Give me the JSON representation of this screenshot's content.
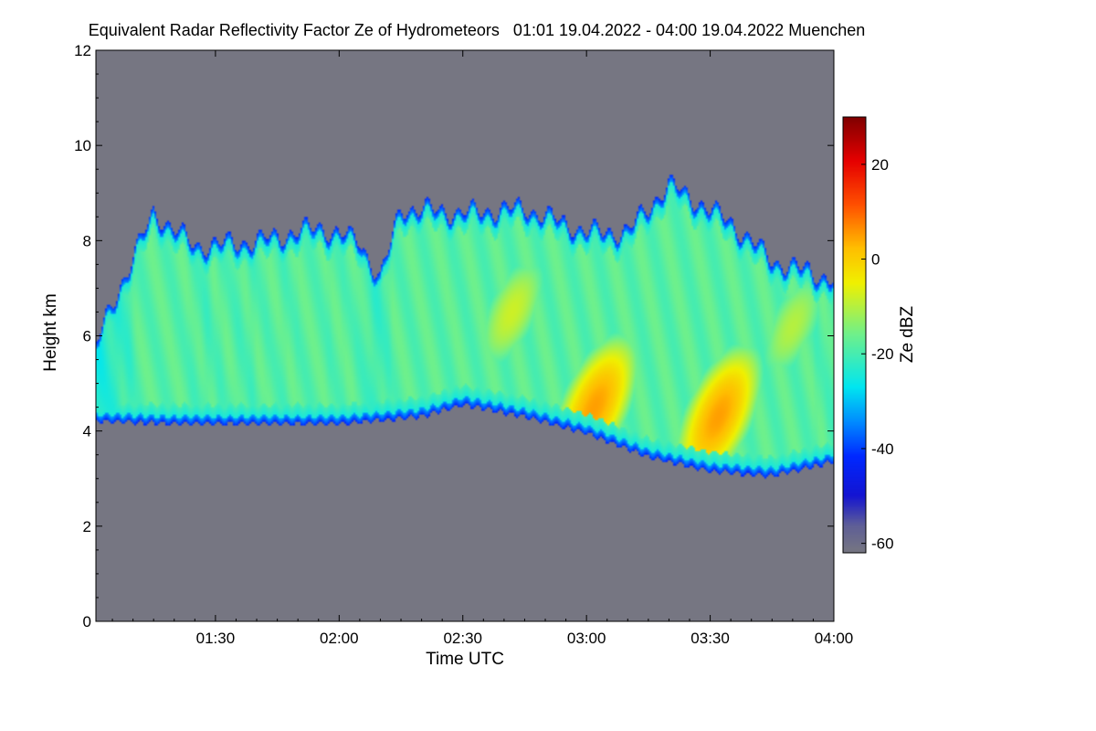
{
  "chart_data": {
    "type": "heatmap",
    "title": "Equivalent Radar Reflectivity Factor Ze of Hydrometeors   01:01 19.04.2022 - 04:00 19.04.2022 Muenchen",
    "xlabel": "Time UTC",
    "ylabel": "Height km",
    "colorbar_label": "Ze dBZ",
    "x_range_minutes_utc": [
      61,
      240
    ],
    "x_ticks": [
      {
        "minute": 90,
        "label": "01:30"
      },
      {
        "minute": 120,
        "label": "02:00"
      },
      {
        "minute": 150,
        "label": "02:30"
      },
      {
        "minute": 180,
        "label": "03:00"
      },
      {
        "minute": 210,
        "label": "03:30"
      },
      {
        "minute": 240,
        "label": "04:00"
      }
    ],
    "ylim": [
      0,
      12
    ],
    "y_ticks": [
      0,
      2,
      4,
      6,
      8,
      10,
      12
    ],
    "colorbar_range": [
      -62,
      30
    ],
    "colorbar_ticks": [
      20,
      0,
      -20,
      -40,
      -60
    ],
    "cloud_layer": {
      "base_km": [
        [
          61,
          4.2
        ],
        [
          80,
          4.15
        ],
        [
          100,
          4.15
        ],
        [
          120,
          4.15
        ],
        [
          140,
          4.3
        ],
        [
          150,
          4.55
        ],
        [
          165,
          4.3
        ],
        [
          180,
          3.95
        ],
        [
          195,
          3.45
        ],
        [
          210,
          3.15
        ],
        [
          225,
          3.05
        ],
        [
          240,
          3.35
        ]
      ],
      "top_km": [
        [
          61,
          5.8
        ],
        [
          65,
          6.7
        ],
        [
          75,
          8.6
        ],
        [
          85,
          7.9
        ],
        [
          100,
          8.0
        ],
        [
          115,
          8.3
        ],
        [
          125,
          8.0
        ],
        [
          130,
          7.2
        ],
        [
          135,
          8.7
        ],
        [
          150,
          8.6
        ],
        [
          165,
          8.7
        ],
        [
          180,
          8.2
        ],
        [
          190,
          8.2
        ],
        [
          200,
          9.2
        ],
        [
          215,
          8.4
        ],
        [
          225,
          7.6
        ],
        [
          240,
          7.2
        ]
      ],
      "core_peaks": [
        {
          "minute": 182,
          "height_km": 4.5,
          "dbz": 5
        },
        {
          "minute": 212,
          "height_km": 4.3,
          "dbz": 5
        },
        {
          "minute": 162,
          "height_km": 6.5,
          "dbz": -8
        },
        {
          "minute": 230,
          "height_km": 6.2,
          "dbz": -10
        }
      ]
    },
    "background_dbz": -62
  }
}
